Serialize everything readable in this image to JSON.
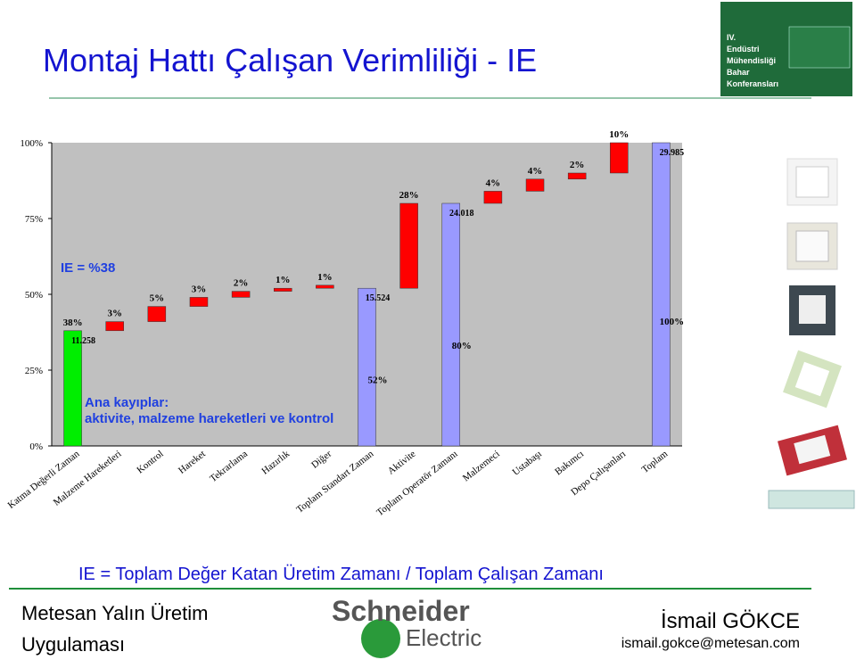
{
  "header": {
    "title": "Montaj Hattı Çalışan Verimliliği - IE",
    "logo": [
      "IV.",
      "Endüstri",
      "Mühendisliği",
      "Bahar",
      "Konferansları"
    ]
  },
  "chart_data": {
    "type": "waterfall",
    "categories": [
      "Katma Değerli Zaman",
      "Malzeme Hareketleri",
      "Kontrol",
      "Hareket",
      "Tekrarlama",
      "Hazırlık",
      "Diğer",
      "Toplam Standart Zaman",
      "Aktivite",
      "Toplam Operatör Zamanı",
      "Malzemeci",
      "Ustabaşı",
      "Bakımcı",
      "Depo Çalışanları",
      "Toplam"
    ],
    "values": [
      38,
      3,
      5,
      3,
      2,
      1,
      1,
      52,
      28,
      80,
      4,
      4,
      2,
      10,
      100
    ],
    "value_labels": [
      "38%",
      "3%",
      "5%",
      "3%",
      "2%",
      "1%",
      "1%",
      "52%",
      "28%",
      "80%",
      "4%",
      "4%",
      "2%",
      "10%",
      "100%"
    ],
    "time_labels": [
      "11.258",
      null,
      null,
      null,
      null,
      null,
      null,
      "15.524",
      null,
      "24.018",
      null,
      null,
      null,
      null,
      "29.985"
    ],
    "colors": [
      "#00ee00",
      "#ff0000",
      "#ff0000",
      "#ff0000",
      "#ff0000",
      "#ff0000",
      "#ff0000",
      "#9999ff",
      "#ff0000",
      "#9999ff",
      "#ff0000",
      "#ff0000",
      "#ff0000",
      "#ff0000",
      "#9999ff"
    ],
    "total_color": "#9999ff",
    "ylim": [
      0,
      100
    ],
    "yticks": [
      {
        "value": 0,
        "label": "0%"
      },
      {
        "value": 25,
        "label": "25%"
      },
      {
        "value": 50,
        "label": "50%"
      },
      {
        "value": 75,
        "label": "75%"
      },
      {
        "value": 100,
        "label": "100%"
      }
    ],
    "annotations": [
      "IE = %38",
      "Ana kayıplar:",
      "aktivite, malzeme hareketleri ve kontrol"
    ]
  },
  "formula": "IE = Toplam Değer Katan Üretim Zamanı / Toplam Çalışan Zamanı",
  "footer": {
    "left": [
      "Metesan Yalın Üretim",
      "Uygulaması"
    ],
    "logo": [
      "Schneider",
      "Electric"
    ],
    "name": "İsmail GÖKCE",
    "email": "ismail.gokce@metesan.com"
  }
}
